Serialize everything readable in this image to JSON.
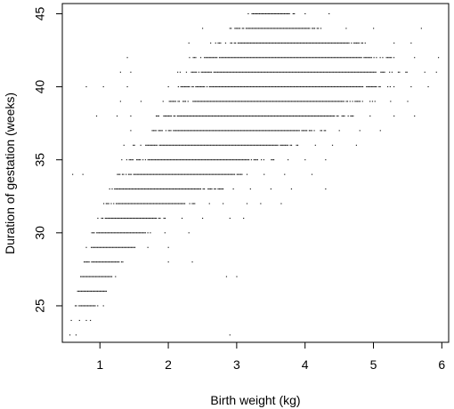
{
  "chart_data": {
    "type": "scatter",
    "title": "",
    "xlabel": "Birth weight (kg)",
    "ylabel": "Duration of gestation (weeks)",
    "xlim": [
      0.45,
      6.1
    ],
    "ylim": [
      22.5,
      45.7
    ],
    "xticks": [
      "1",
      "2",
      "3",
      "4",
      "5",
      "6"
    ],
    "yticks": [
      "25",
      "30",
      "35",
      "40",
      "45"
    ],
    "xtick_values": [
      1,
      2,
      3,
      4,
      5,
      6
    ],
    "ytick_values": [
      25,
      30,
      35,
      40,
      45
    ],
    "grid": false,
    "legend": "none",
    "marker_color": "#000000",
    "series": [
      {
        "points_by_week": [
          {
            "week": 23,
            "dense": [],
            "sparse": [
              0.56,
              0.65,
              2.9
            ]
          },
          {
            "week": 24,
            "dense": [],
            "sparse": [
              0.58,
              0.7,
              0.8,
              0.86
            ]
          },
          {
            "week": 25,
            "dense": [
              [
                0.62,
                0.98
              ]
            ],
            "sparse": [
              1.05
            ]
          },
          {
            "week": 26,
            "dense": [
              [
                0.6,
                1.12
              ]
            ],
            "sparse": []
          },
          {
            "week": 27,
            "dense": [
              [
                0.68,
                1.25
              ]
            ],
            "sparse": [
              2.85,
              3.0
            ]
          },
          {
            "week": 28,
            "dense": [
              [
                0.75,
                1.38
              ]
            ],
            "sparse": [
              2.0,
              2.35
            ]
          },
          {
            "week": 29,
            "dense": [
              [
                0.8,
                1.55
              ]
            ],
            "sparse": [
              1.7,
              2.0
            ]
          },
          {
            "week": 30,
            "dense": [
              [
                0.88,
                1.8
              ]
            ],
            "sparse": [
              1.95,
              2.3
            ]
          },
          {
            "week": 31,
            "dense": [
              [
                0.95,
                2.0
              ]
            ],
            "sparse": [
              2.2,
              2.5,
              2.9,
              3.1
            ]
          },
          {
            "week": 32,
            "dense": [
              [
                1.0,
                2.45
              ]
            ],
            "sparse": [
              2.6,
              2.8,
              3.15,
              3.35,
              3.65
            ]
          },
          {
            "week": 33,
            "dense": [
              [
                1.05,
                2.8
              ]
            ],
            "sparse": [
              2.95,
              3.2,
              3.5,
              3.8,
              4.3
            ]
          },
          {
            "week": 34,
            "dense": [
              [
                1.2,
                3.2
              ]
            ],
            "sparse": [
              0.6,
              0.75,
              3.4,
              3.7,
              4.1
            ]
          },
          {
            "week": 35,
            "dense": [
              [
                1.3,
                3.55
              ]
            ],
            "sparse": [
              3.75,
              4.0,
              4.3
            ]
          },
          {
            "week": 36,
            "dense": [
              [
                1.45,
                3.95
              ]
            ],
            "sparse": [
              1.35,
              4.15,
              4.4,
              4.75
            ]
          },
          {
            "week": 37,
            "dense": [
              [
                1.6,
                4.3
              ]
            ],
            "sparse": [
              1.45,
              4.5,
              4.8,
              5.1
            ]
          },
          {
            "week": 38,
            "dense": [
              [
                1.75,
                4.75
              ]
            ],
            "sparse": [
              0.95,
              1.25,
              1.45,
              4.95,
              5.3,
              5.6
            ]
          },
          {
            "week": 39,
            "dense": [
              [
                1.85,
                5.05
              ]
            ],
            "sparse": [
              1.3,
              1.6,
              5.25,
              5.5
            ]
          },
          {
            "week": 40,
            "dense": [
              [
                2.0,
                5.35
              ]
            ],
            "sparse": [
              0.8,
              1.05,
              1.4,
              5.55,
              5.8
            ]
          },
          {
            "week": 41,
            "dense": [
              [
                2.1,
                5.55
              ]
            ],
            "sparse": [
              1.3,
              1.45,
              5.75,
              5.92
            ]
          },
          {
            "week": 42,
            "dense": [
              [
                2.2,
                5.35
              ]
            ],
            "sparse": [
              1.4,
              5.6,
              5.95
            ]
          },
          {
            "week": 43,
            "dense": [
              [
                2.6,
                4.95
              ]
            ],
            "sparse": [
              2.3,
              5.3,
              5.55
            ]
          },
          {
            "week": 44,
            "dense": [
              [
                2.9,
                4.25
              ]
            ],
            "sparse": [
              2.5,
              4.6,
              5.0,
              5.7
            ]
          },
          {
            "week": 45,
            "dense": [
              [
                3.15,
                3.85
              ]
            ],
            "sparse": [
              4.0,
              4.35
            ]
          }
        ]
      }
    ]
  }
}
